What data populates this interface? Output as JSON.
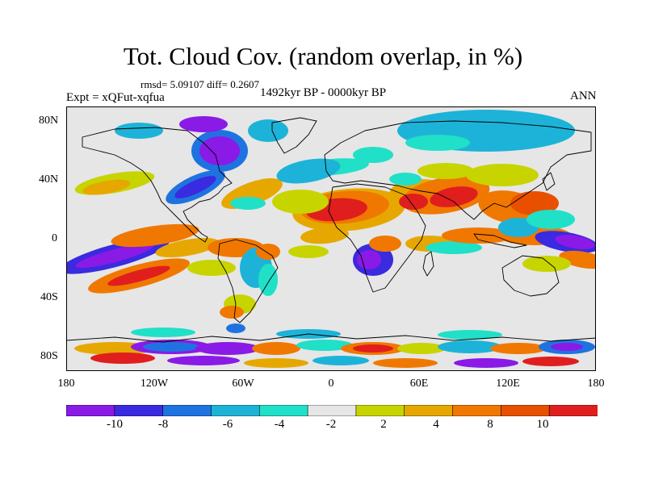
{
  "title": "Tot. Cloud Cov. (random overlap, in %)",
  "stats": "rmsd= 5.09107 diff= 0.2607",
  "experiment": "Expt = xQFut-xqfua",
  "period": "1492kyr BP - 0000kyr BP",
  "season": "ANN",
  "axes": {
    "lat_labels": [
      "80N",
      "40N",
      "0",
      "40S",
      "80S"
    ],
    "lon_labels": [
      "180",
      "120W",
      "60W",
      "0",
      "60E",
      "120E",
      "180"
    ]
  },
  "colorbar": {
    "labels": [
      "-10",
      "-8",
      "-6",
      "-4",
      "-2",
      "2",
      "4",
      "8",
      "10"
    ],
    "colors": [
      "#8a1ae6",
      "#3a2ae0",
      "#1f73e0",
      "#1db3d8",
      "#20e0c8",
      "#e6e6e6",
      "#c8d400",
      "#e6a800",
      "#f07800",
      "#e85000",
      "#e01e1e"
    ]
  },
  "palette": {
    "neutral": "#e6e6e6",
    "purple": "#8a1ae6",
    "blue": "#3a2ae0",
    "midblue": "#1f73e0",
    "cyan": "#1db3d8",
    "teal": "#20e0c8",
    "yellow": "#c8d400",
    "lightorange": "#e6a800",
    "orange": "#f07800",
    "darkorange": "#e85000",
    "red": "#e01e1e"
  }
}
